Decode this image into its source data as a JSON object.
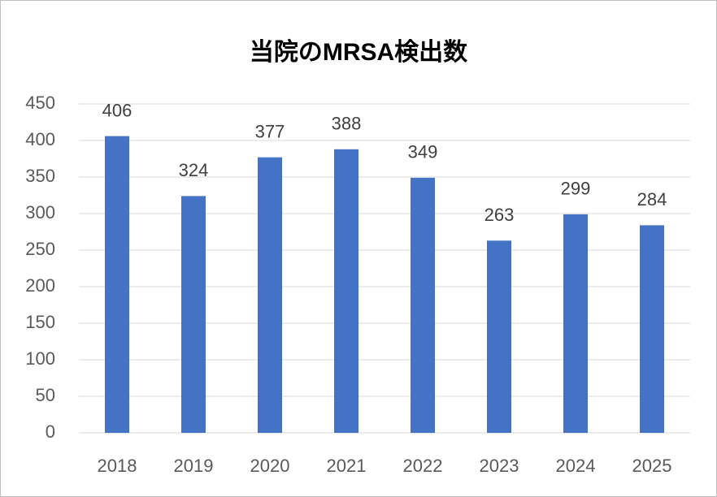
{
  "chart_data": {
    "type": "bar",
    "title": "当院のMRSA検出数",
    "categories": [
      "2018",
      "2019",
      "2020",
      "2021",
      "2022",
      "2023",
      "2024",
      "2025"
    ],
    "values": [
      406,
      324,
      377,
      388,
      349,
      263,
      299,
      284
    ],
    "color": "#4472c4",
    "ylim": [
      0,
      450
    ],
    "yticks": [
      0,
      50,
      100,
      150,
      200,
      250,
      300,
      350,
      400,
      450
    ],
    "grid": true
  }
}
